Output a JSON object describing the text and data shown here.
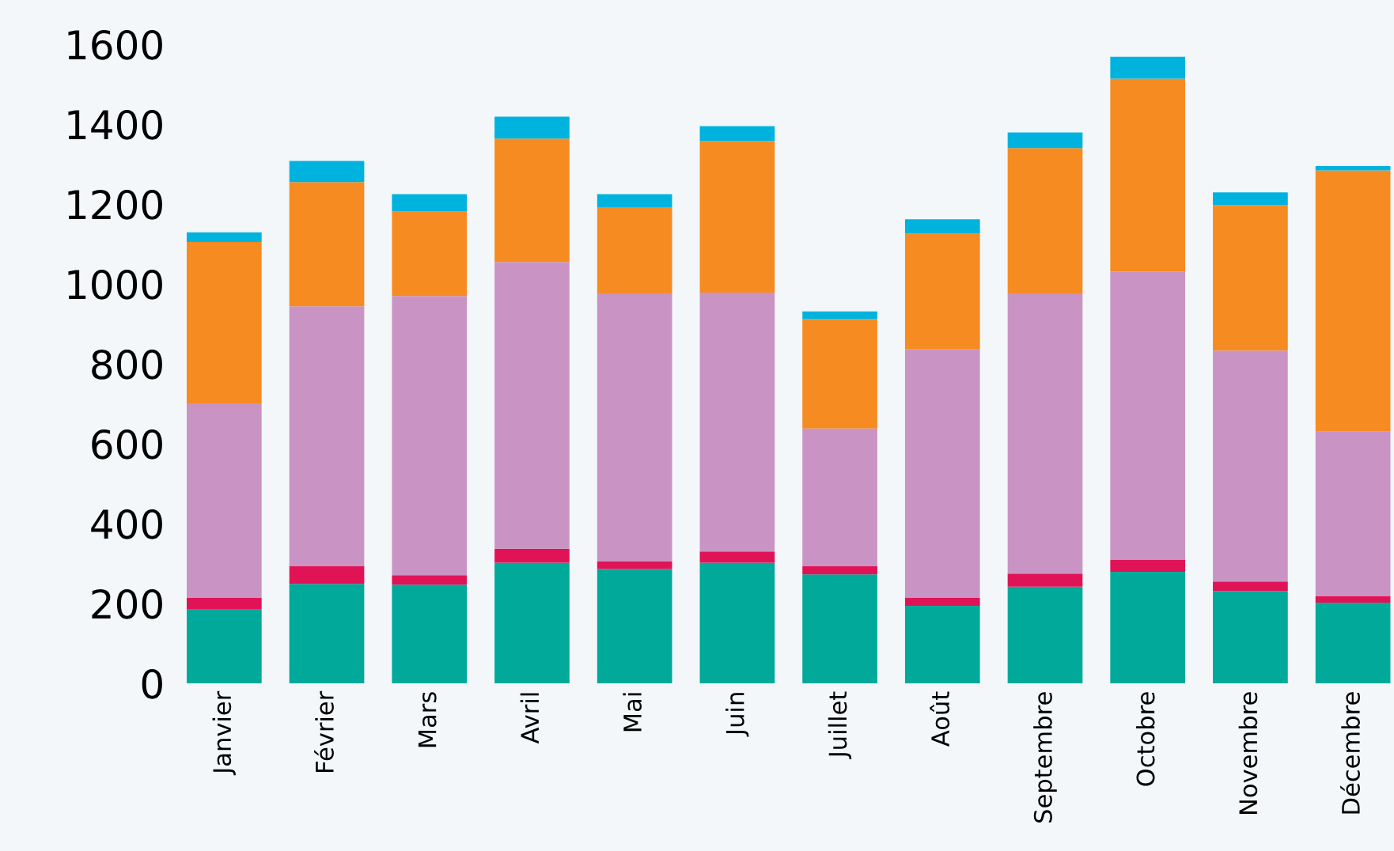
{
  "chart_data": {
    "type": "bar",
    "stacked": true,
    "categories": [
      "Janvier",
      "Février",
      "Mars",
      "Avril",
      "Mai",
      "Juin",
      "Juillet",
      "Août",
      "Septembre",
      "Octobre",
      "Novembre",
      "Décembre"
    ],
    "series": [
      {
        "color": "#00a99a",
        "values": [
          186,
          249,
          247,
          302,
          286,
          302,
          273,
          194,
          242,
          279,
          231,
          202
        ]
      },
      {
        "color": "#e01357",
        "values": [
          28,
          45,
          24,
          35,
          20,
          28,
          21,
          20,
          33,
          31,
          24,
          17
        ]
      },
      {
        "color": "#c994c4",
        "values": [
          487,
          650,
          699,
          718,
          670,
          648,
          344,
          622,
          701,
          721,
          578,
          411
        ]
      },
      {
        "color": "#f68b21",
        "values": [
          404,
          311,
          211,
          309,
          216,
          380,
          274,
          290,
          364,
          483,
          364,
          654
        ]
      },
      {
        "color": "#00b2de",
        "values": [
          24,
          53,
          44,
          55,
          33,
          37,
          19,
          36,
          39,
          55,
          32,
          11
        ]
      }
    ],
    "ylim": [
      0,
      1600
    ],
    "yticks": [
      0,
      200,
      400,
      600,
      800,
      1000,
      1200,
      1400,
      1600
    ],
    "grid": false
  }
}
